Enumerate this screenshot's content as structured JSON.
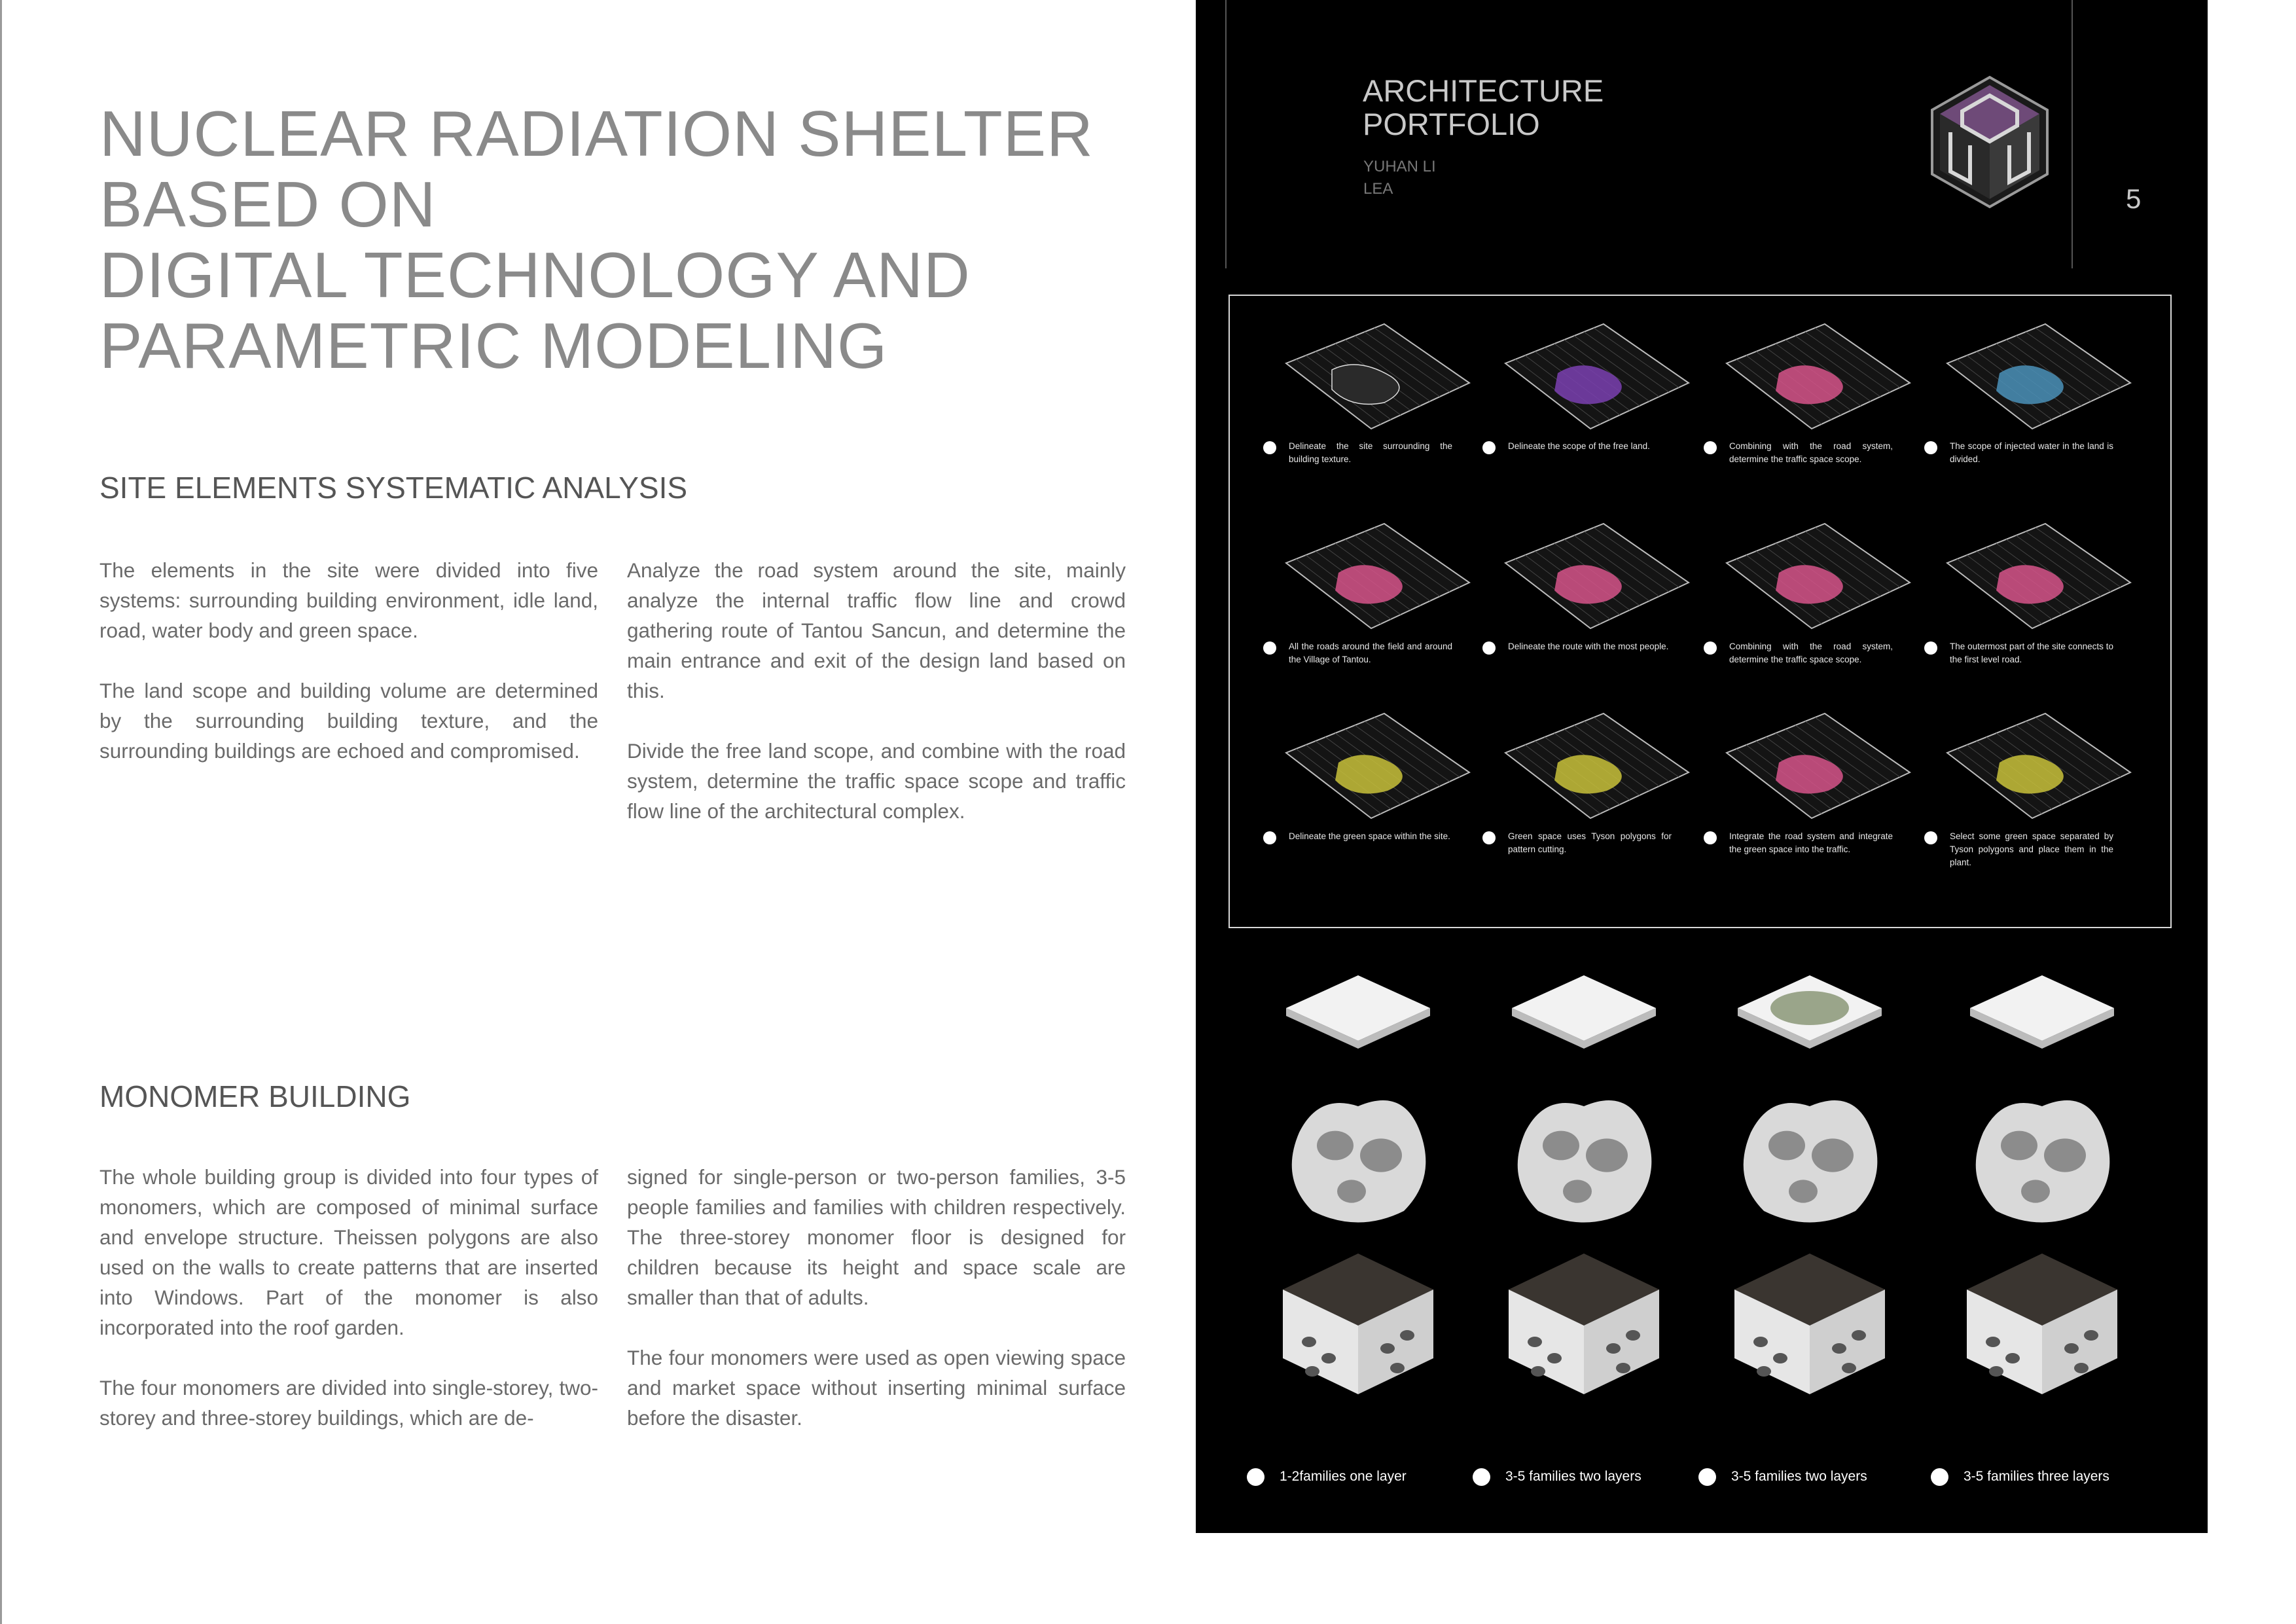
{
  "title_lines": [
    "NUCLEAR RADIATION SHELTER",
    "BASED ON",
    "DIGITAL TECHNOLOGY AND",
    "PARAMETRIC MODELING"
  ],
  "site_section": {
    "heading": "SITE ELEMENTS SYSTEMATIC ANALYSIS",
    "col1": [
      "The elements in the site were divided into five systems: surrounding building environment, idle land, road, water body and green space.",
      "The land scope and building volume are determined by the surrounding building texture, and the surrounding buildings are echoed and compromised."
    ],
    "col2": [
      "Analyze the road system around the site, mainly analyze the internal traffic flow line and crowd gathering route of Tantou Sancun, and determine the main entrance and exit of the design land based on this.",
      "Divide the free land scope, and combine with the road system, determine the traffic space scope and traffic flow line of the architectural complex."
    ]
  },
  "monomer_section": {
    "heading": "MONOMER BUILDING",
    "col1": [
      "The whole building group is divided into four types of monomers, which are composed of minimal surface and envelope structure. Theissen polygons are also used on the walls to create patterns that are inserted into Windows. Part of the monomer is also incorporated into the roof garden.",
      "The four monomers are divided into single-storey, two-storey and three-storey buildings, which are de-"
    ],
    "col2": [
      "signed for single-person or two-person families, 3-5 people families and families with children respectively. The three-storey monomer floor is designed for children because its height and space scale are smaller than that of adults.",
      "The four monomers were used as open viewing space and market space without inserting minimal surface before the disaster."
    ]
  },
  "portfolio": {
    "title_line1": "ARCHITECTURE",
    "title_line2": "PORTFOLIO",
    "author": "YUHAN LI",
    "school": "LEA",
    "page_number": "5",
    "logo_color": "#6e4a78"
  },
  "analysis_captions": [
    [
      "Delineate the site surrounding the building texture.",
      "Delineate the scope of the free land.",
      "Combining with the road system, determine the traffic space scope.",
      "The scope of injected water in the land is divided."
    ],
    [
      "All the roads around the field and around the Village of Tantou.",
      "Delineate the route with the most people.",
      "Combining with the road system, determine the traffic space scope.",
      "The outermost part of the site connects to the first level road."
    ],
    [
      "Delineate the green space within the site.",
      "Green space uses Tyson polygons for pattern cutting.",
      "Integrate the road system and integrate the green space into the traffic.",
      "Select some green space separated by Tyson polygons and place them in the plant."
    ]
  ],
  "map_highlight_colors": [
    [
      "none",
      "#7a3fb0",
      "#d6548a",
      "#4a90b8"
    ],
    [
      "#d6548a",
      "#d6548a",
      "#d6548a",
      "#d6548a"
    ],
    [
      "#c8c13a",
      "#c8c13a",
      "#d6548a",
      "#c8c13a"
    ]
  ],
  "monomer_labels": [
    "1-2families  one layer",
    "3-5 families  two layers",
    "3-5 families  two layers",
    "3-5 families  three layers"
  ]
}
